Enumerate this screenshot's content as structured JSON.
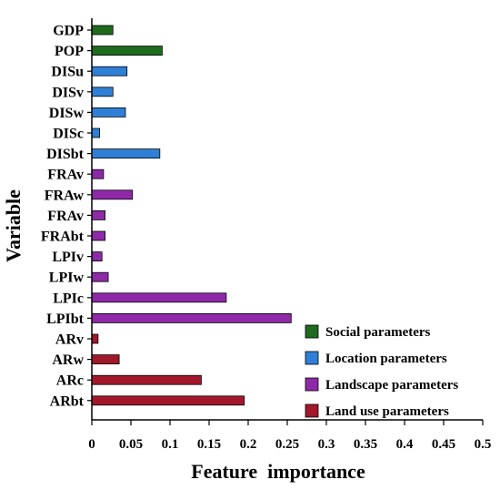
{
  "chart_data": {
    "type": "bar",
    "orientation": "horizontal",
    "xlabel": "Feature  importance",
    "ylabel": "Variable",
    "xlim": [
      0,
      0.5
    ],
    "xticks": [
      "0",
      "0.05",
      "0.1",
      "0.15",
      "0.2",
      "0.25",
      "0.3",
      "0.35",
      "0.4",
      "0.45",
      "0.5"
    ],
    "grid": false,
    "legend_position": "bottom-right",
    "categories": [
      "GDP",
      "POP",
      "DISu",
      "DISv",
      "DISw",
      "DISc",
      "DISbt",
      "FRAv",
      "FRAw",
      "FRAv",
      "FRAbt",
      "LPIv",
      "LPIw",
      "LPIc",
      "LPIbt",
      "ARv",
      "ARw",
      "ARc",
      "ARbt"
    ],
    "values": [
      0.027,
      0.09,
      0.045,
      0.027,
      0.043,
      0.01,
      0.087,
      0.015,
      0.052,
      0.017,
      0.017,
      0.013,
      0.021,
      0.172,
      0.255,
      0.008,
      0.035,
      0.14,
      0.195
    ],
    "groups": [
      0,
      0,
      1,
      1,
      1,
      1,
      1,
      2,
      2,
      2,
      2,
      2,
      2,
      2,
      2,
      3,
      3,
      3,
      3
    ],
    "series": [
      {
        "name": "Social parameters",
        "color": "#1e6b1e"
      },
      {
        "name": "Location parameters",
        "color": "#2f7fd6"
      },
      {
        "name": "Landscape parameters",
        "color": "#8e2aa8"
      },
      {
        "name": "Land use parameters",
        "color": "#a3172a"
      }
    ]
  }
}
